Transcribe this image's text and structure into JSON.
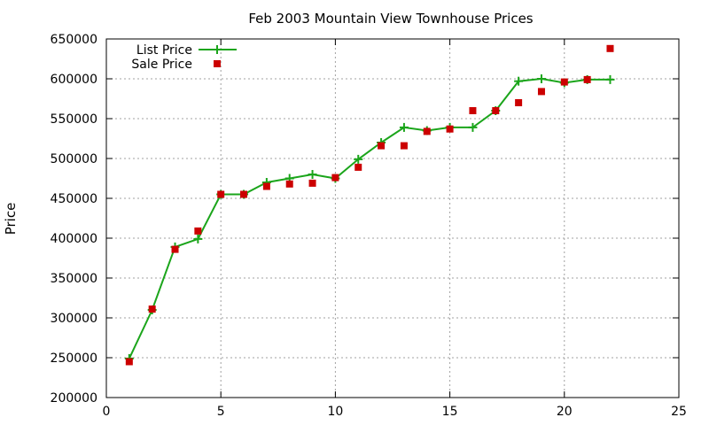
{
  "chart_data": {
    "type": "line",
    "title": "Feb 2003 Mountain View Townhouse Prices",
    "xlabel": "",
    "ylabel": "Price",
    "xlim": [
      0,
      25
    ],
    "ylim": [
      200000,
      650000
    ],
    "x_ticks": [
      0,
      5,
      10,
      15,
      20,
      25
    ],
    "y_ticks": [
      200000,
      250000,
      300000,
      350000,
      400000,
      450000,
      500000,
      550000,
      600000,
      650000
    ],
    "grid": true,
    "legend_position": "top-left",
    "series": [
      {
        "name": "List Price",
        "style": "line+cross",
        "color": "#1ba51b",
        "x": [
          1,
          2,
          3,
          4,
          5,
          6,
          7,
          8,
          9,
          10,
          11,
          12,
          13,
          14,
          15,
          16,
          17,
          18,
          19,
          20,
          21,
          22
        ],
        "y": [
          249000,
          310000,
          389000,
          399000,
          455000,
          455000,
          470000,
          475000,
          480000,
          475000,
          499000,
          520000,
          539000,
          535000,
          539000,
          539000,
          560000,
          597000,
          600000,
          595000,
          599000,
          599000
        ]
      },
      {
        "name": "Sale Price",
        "style": "square",
        "color": "#cc0000",
        "x": [
          1,
          2,
          3,
          4,
          5,
          6,
          7,
          8,
          9,
          10,
          11,
          12,
          13,
          14,
          15,
          16,
          17,
          18,
          19,
          20,
          21,
          22
        ],
        "y": [
          245000,
          311000,
          386000,
          409000,
          455000,
          455000,
          465000,
          468000,
          469000,
          476000,
          489000,
          516000,
          516000,
          534000,
          537000,
          560000,
          560000,
          570000,
          584000,
          596000,
          599000,
          638000
        ]
      }
    ]
  }
}
